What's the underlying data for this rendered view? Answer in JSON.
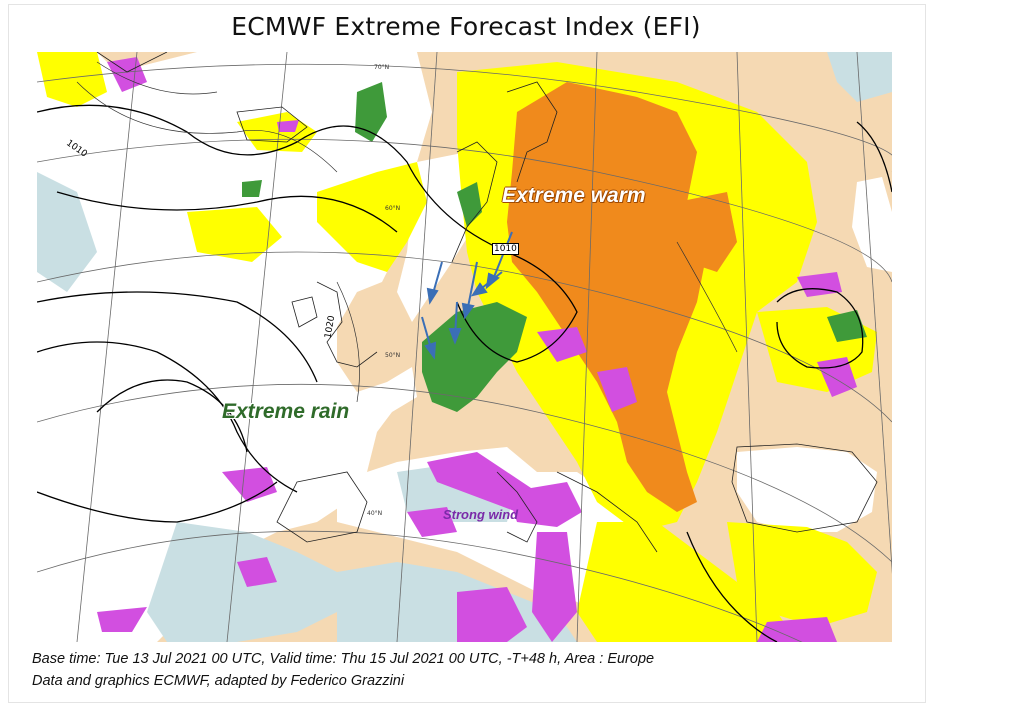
{
  "title": "ECMWF Extreme Forecast Index (EFI)",
  "map": {
    "region": "Europe",
    "labels": {
      "warm": "Extreme warm",
      "rain": "Extreme rain",
      "wind": "Strong wind"
    },
    "isobars": [
      "1010",
      "1010",
      "1020"
    ],
    "latitudes": [
      "70°N",
      "60°N",
      "50°N",
      "40°N"
    ],
    "colors": {
      "warm_extreme": "#f08a1c",
      "warm_moderate": "#ffff00",
      "background_land": "#f5d9b3",
      "sea": "#ffffff",
      "cool": "#c9dfe3",
      "rain": "#3f9a3a",
      "wind": "#d24fe0",
      "arrows": "#3b6fb6"
    }
  },
  "caption": {
    "line1": "Base time: Tue 13 Jul 2021 00 UTC, Valid time: Thu 15 Jul 2021 00 UTC, -T+48 h, Area : Europe",
    "line2": "Data and graphics ECMWF, adapted by Federico Grazzini"
  }
}
